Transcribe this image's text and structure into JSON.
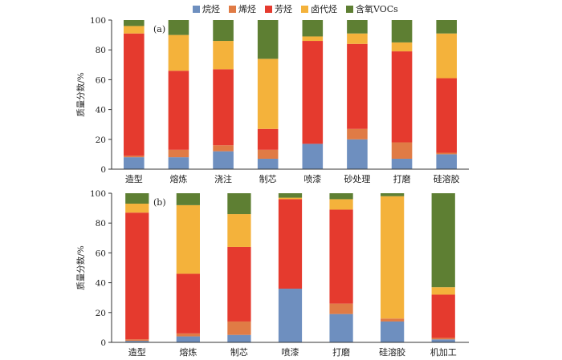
{
  "legend": {
    "items": [
      {
        "name": "烷烃",
        "color": "#6e8fbf"
      },
      {
        "name": "烯烃",
        "color": "#e07b45"
      },
      {
        "name": "芳烃",
        "color": "#e53a2e"
      },
      {
        "name": "卤代烃",
        "color": "#f4b23b"
      },
      {
        "name": "含氧VOCs",
        "color": "#5e7f33"
      }
    ]
  },
  "chart_data": [
    {
      "type": "bar",
      "stacked": true,
      "panel_label": "(a)",
      "ylabel": "质量分数/%",
      "ylim": [
        0,
        100
      ],
      "yticks": [
        0,
        20,
        40,
        60,
        80,
        100
      ],
      "categories": [
        "造型",
        "熔炼",
        "浇注",
        "制芯",
        "喷漆",
        "砂处理",
        "打磨",
        "硅溶胶"
      ],
      "series": [
        {
          "name": "烷烃",
          "color": "#6e8fbf",
          "values": [
            8,
            8,
            12,
            7,
            17,
            20,
            7,
            10
          ]
        },
        {
          "name": "烯烃",
          "color": "#e07b45",
          "values": [
            1,
            5,
            4,
            6,
            0,
            7,
            11,
            1
          ]
        },
        {
          "name": "芳烃",
          "color": "#e53a2e",
          "values": [
            82,
            53,
            51,
            14,
            69,
            57,
            61,
            50
          ]
        },
        {
          "name": "卤代烃",
          "color": "#f4b23b",
          "values": [
            5,
            24,
            19,
            47,
            3,
            7,
            6,
            30
          ]
        },
        {
          "name": "含氧VOCs",
          "color": "#5e7f33",
          "values": [
            4,
            10,
            14,
            26,
            11,
            9,
            15,
            9
          ]
        }
      ]
    },
    {
      "type": "bar",
      "stacked": true,
      "panel_label": "(b)",
      "ylabel": "质量分数/%",
      "ylim": [
        0,
        100
      ],
      "yticks": [
        0,
        20,
        40,
        60,
        80,
        100
      ],
      "categories": [
        "造型",
        "熔炼",
        "制芯",
        "喷漆",
        "打磨",
        "硅溶胶",
        "机加工"
      ],
      "series": [
        {
          "name": "烷烃",
          "color": "#6e8fbf",
          "values": [
            1,
            4,
            5,
            36,
            19,
            14,
            2
          ]
        },
        {
          "name": "烯烃",
          "color": "#e07b45",
          "values": [
            1,
            2,
            9,
            0,
            7,
            2,
            1
          ]
        },
        {
          "name": "芳烃",
          "color": "#e53a2e",
          "values": [
            85,
            40,
            50,
            60,
            63,
            0,
            29
          ]
        },
        {
          "name": "卤代烃",
          "color": "#f4b23b",
          "values": [
            6,
            46,
            22,
            1,
            7,
            82,
            5
          ]
        },
        {
          "name": "含氧VOCs",
          "color": "#5e7f33",
          "values": [
            7,
            8,
            14,
            3,
            4,
            2,
            63
          ]
        }
      ]
    }
  ]
}
